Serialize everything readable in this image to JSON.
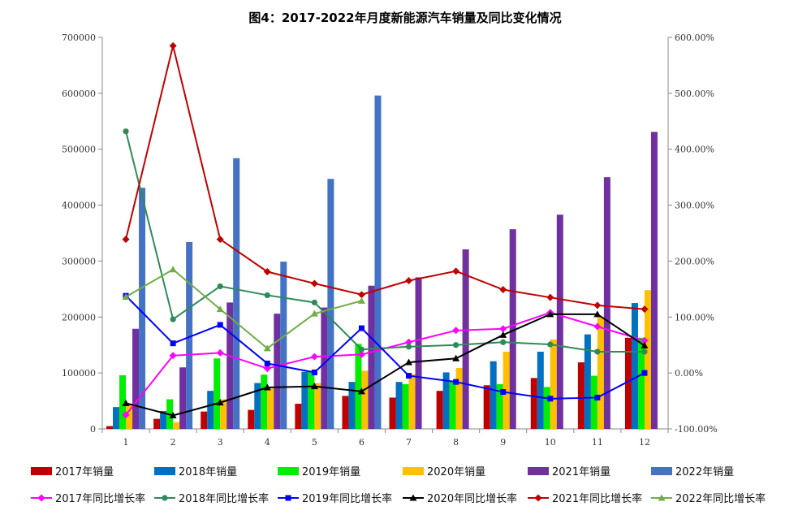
{
  "chart_data": {
    "type": "bar",
    "title": "图4：2017-2022年月度新能源汽车销量及同比变化情况",
    "categories": [
      "1",
      "2",
      "3",
      "4",
      "5",
      "6",
      "7",
      "8",
      "9",
      "10",
      "11",
      "12"
    ],
    "y_left": {
      "min": 0,
      "max": 700000,
      "ticks": [
        "0",
        "100000",
        "200000",
        "300000",
        "400000",
        "500000",
        "600000",
        "700000"
      ]
    },
    "y_right": {
      "min": -100,
      "max": 600,
      "ticks": [
        "-100.00%",
        "0.00%",
        "100.00%",
        "200.00%",
        "300.00%",
        "400.00%",
        "500.00%",
        "600.00%"
      ]
    },
    "bar_series": [
      {
        "name": "2017年销量",
        "color": "#c00000",
        "values": [
          5000,
          18000,
          31000,
          34000,
          45000,
          59000,
          56000,
          68000,
          78000,
          91000,
          119000,
          163000
        ]
      },
      {
        "name": "2018年销量",
        "color": "#0070c0",
        "values": [
          39000,
          32000,
          68000,
          82000,
          102000,
          84000,
          84000,
          101000,
          121000,
          138000,
          169000,
          225000
        ]
      },
      {
        "name": "2019年销量",
        "color": "#00ee00",
        "values": [
          96000,
          53000,
          126000,
          97000,
          104000,
          152000,
          80000,
          85000,
          80000,
          75000,
          95000,
          163000
        ]
      },
      {
        "name": "2020年销量",
        "color": "#ffc000",
        "values": [
          44000,
          12000,
          53000,
          72000,
          82000,
          104000,
          98000,
          109000,
          138000,
          160000,
          200000,
          248000
        ]
      },
      {
        "name": "2021年销量",
        "color": "#7030a0",
        "values": [
          179000,
          110000,
          226000,
          206000,
          217000,
          256000,
          271000,
          321000,
          357000,
          383000,
          450000,
          531000
        ]
      },
      {
        "name": "2022年销量",
        "color": "#4472c4",
        "values": [
          431000,
          334000,
          484000,
          299000,
          447000,
          596000,
          null,
          null,
          null,
          null,
          null,
          null
        ]
      }
    ],
    "line_series": [
      {
        "name": "2017年同比增长率",
        "color": "#ff00ff",
        "marker": "diamond",
        "values": [
          -75,
          31,
          36,
          8,
          29,
          33,
          55,
          76,
          79,
          108,
          83,
          58
        ]
      },
      {
        "name": "2018年同比增长率",
        "color": "#2e8b57",
        "marker": "circle",
        "values": [
          432,
          96,
          155,
          139,
          126,
          42,
          47,
          50,
          55,
          51,
          38,
          38
        ]
      },
      {
        "name": "2019年同比增长率",
        "color": "#0000ff",
        "marker": "square",
        "values": [
          138,
          53,
          86,
          17,
          1,
          80,
          -5,
          -16,
          -34,
          -46,
          -44,
          0
        ]
      },
      {
        "name": "2020年同比增长率",
        "color": "#000000",
        "marker": "triangle",
        "values": [
          -54,
          -76,
          -53,
          -26,
          -24,
          -33,
          19,
          26,
          68,
          105,
          105,
          49
        ]
      },
      {
        "name": "2021年同比增长率",
        "color": "#c00000",
        "marker": "diamond",
        "values": [
          239,
          585,
          239,
          181,
          160,
          140,
          165,
          182,
          149,
          135,
          121,
          114
        ]
      },
      {
        "name": "2022年同比增长率",
        "color": "#70ad47",
        "marker": "triangle",
        "values": [
          136,
          185,
          114,
          44,
          106,
          129,
          null,
          null,
          null,
          null,
          null,
          null
        ]
      }
    ],
    "grid": false,
    "legend": "bottom"
  }
}
